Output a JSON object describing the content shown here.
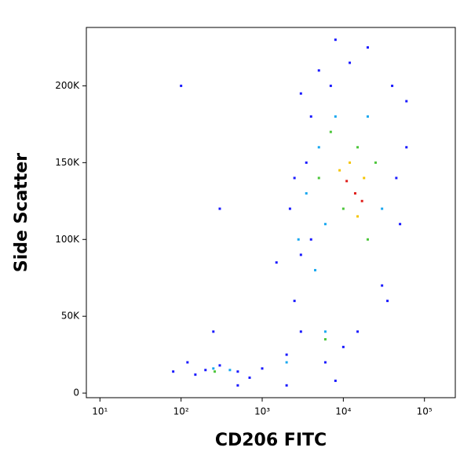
{
  "chart_data": {
    "type": "scatter",
    "x_label": "CD206 FITC",
    "y_label": "Side Scatter",
    "x_log": true,
    "xlim": [
      6.8,
      240000
    ],
    "xticks": [
      {
        "value": 10,
        "label": "10¹"
      },
      {
        "value": 100,
        "label": "10²"
      },
      {
        "value": 1000,
        "label": "10³"
      },
      {
        "value": 10000,
        "label": "10⁴"
      },
      {
        "value": 100000,
        "label": "10⁵"
      }
    ],
    "ylim": [
      -3000,
      238000
    ],
    "yticks": [
      0,
      {
        "value": 50000,
        "label": "50K"
      },
      {
        "value": 100000,
        "label": "100K"
      },
      {
        "value": 150000,
        "label": "150K"
      },
      {
        "value": 200000,
        "label": "200K"
      }
    ],
    "series": [
      {
        "color": "#1a1aff",
        "x": [
          200,
          150,
          300,
          500,
          700,
          1000,
          80,
          120,
          2000,
          3000,
          2500,
          3000,
          2200,
          3500,
          4000,
          5000,
          8000,
          20000,
          40000,
          60000,
          50000,
          30000,
          15000,
          6000,
          10000,
          4000,
          2500,
          7000,
          12000,
          45000,
          300,
          100,
          500,
          2000,
          8000,
          1500,
          35000,
          250,
          60000,
          3000
        ],
        "values": [
          15000,
          12000,
          18000,
          14000,
          10000,
          16000,
          14000,
          20000,
          25000,
          40000,
          60000,
          90000,
          120000,
          150000,
          180000,
          210000,
          230000,
          225000,
          200000,
          160000,
          110000,
          70000,
          40000,
          20000,
          30000,
          100000,
          140000,
          200000,
          215000,
          140000,
          120000,
          200000,
          5000,
          5000,
          8000,
          85000,
          60000,
          40000,
          190000,
          195000
        ]
      },
      {
        "color": "#19a8f0",
        "x": [
          2800,
          3500,
          5000,
          6000,
          4500,
          8000,
          20000,
          30000,
          250,
          400,
          6000,
          2000
        ],
        "values": [
          100000,
          130000,
          160000,
          110000,
          80000,
          180000,
          180000,
          120000,
          16000,
          15000,
          40000,
          20000
        ]
      },
      {
        "color": "#4cc63a",
        "x": [
          5000,
          7000,
          15000,
          25000,
          10000,
          6000,
          260,
          20000
        ],
        "values": [
          140000,
          170000,
          160000,
          150000,
          120000,
          35000,
          14000,
          100000
        ]
      },
      {
        "color": "#f5c400",
        "x": [
          12000,
          18000,
          9000,
          15000
        ],
        "values": [
          150000,
          140000,
          145000,
          115000
        ]
      },
      {
        "color": "#e0201c",
        "x": [
          14000,
          17000,
          11000
        ],
        "values": [
          130000,
          125000,
          138000
        ]
      }
    ]
  }
}
